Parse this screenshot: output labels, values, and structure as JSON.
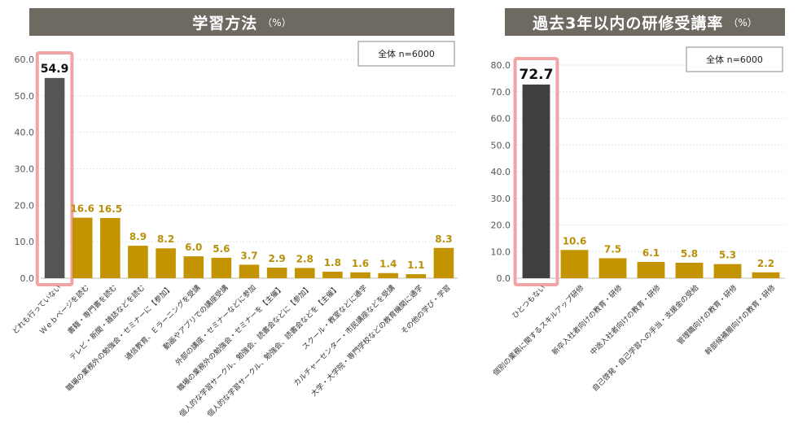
{
  "left_chart": {
    "title": "学習方法",
    "unit": "（%）",
    "sample_note": "全体  n=6000"
  },
  "right_chart": {
    "title": "過去3年以内の研修受講率",
    "unit": "（%）",
    "sample_note": "全体  n=6000"
  },
  "colors": {
    "highlight": "#555555",
    "highlight_right": "#404040",
    "bar": "#c39400",
    "label": "#b8900a",
    "box": "#f0a4a4",
    "header": "#6e6a62"
  },
  "chart_data": [
    {
      "type": "bar",
      "title": "学習方法",
      "ylim": [
        0,
        60
      ],
      "yticks": [
        "0.0",
        "10.0",
        "20.0",
        "30.0",
        "40.0",
        "50.0",
        "60.0"
      ],
      "grid": true,
      "categories": [
        "どれも行っていない",
        "Ｗｅｂページを読む",
        "書籍・専門書を読む",
        "テレビ・新聞・雑誌などを読む",
        "職場の業務外の勉強会・セミナーに【参加】",
        "通信教育、Ｅラーニングを受講",
        "動画やアプリでの講座受講",
        "外部の講座・セミナーなどに参加",
        "職場の業務外の勉強会・セミナーを【主催】",
        "個人的な学習サークル、勉強会、読書会などに【参加】",
        "個人的な学習サークル、勉強会、読書会などを【主催】",
        "スクール・教室などに通学",
        "カルチャーセンター・市民講座などを受講",
        "大学・大学院・専門学校などの教育機関に通学",
        "その他の学び・学習"
      ],
      "values": [
        54.9,
        16.6,
        16.5,
        8.9,
        8.2,
        6.0,
        5.6,
        3.7,
        2.9,
        2.8,
        1.8,
        1.6,
        1.4,
        1.1,
        8.3
      ],
      "labels": [
        "54.9",
        "16.6",
        "16.5",
        "8.9",
        "8.2",
        "6.0",
        "5.6",
        "3.7",
        "2.9",
        "2.8",
        "1.8",
        "1.6",
        "1.4",
        "1.1",
        "8.3"
      ],
      "highlight_index": 0
    },
    {
      "type": "bar",
      "title": "過去3年以内の研修受講率",
      "ylim": [
        0,
        80
      ],
      "yticks": [
        "0.0",
        "10.0",
        "20.0",
        "30.0",
        "40.0",
        "50.0",
        "60.0",
        "70.0",
        "80.0"
      ],
      "grid": true,
      "categories": [
        "ひとつもない",
        "個別の業務に関するスキルアップ研修",
        "新卒入社者向けの教育・研修",
        "中途入社者向けの教育・研修",
        "自己啓発・自己学習への手当・支援金の受給",
        "管理職向けの教育・研修",
        "幹部候補層向けの教育・研修"
      ],
      "values": [
        72.7,
        10.6,
        7.5,
        6.1,
        5.8,
        5.3,
        2.2
      ],
      "labels": [
        "72.7",
        "10.6",
        "7.5",
        "6.1",
        "5.8",
        "5.3",
        "2.2"
      ],
      "highlight_index": 0
    }
  ]
}
